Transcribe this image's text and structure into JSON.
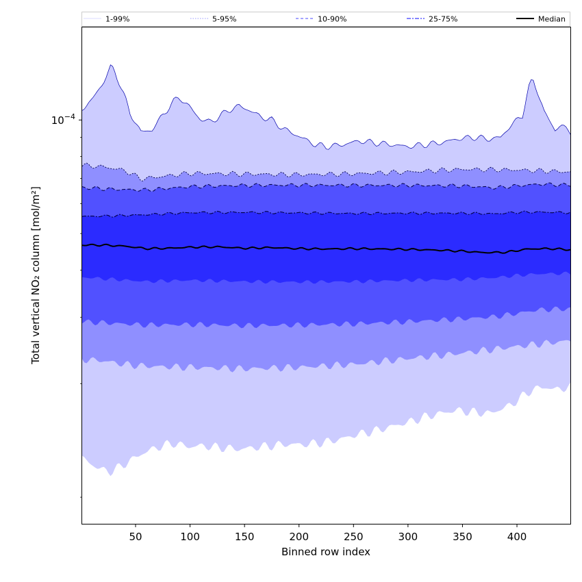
{
  "chart_data": {
    "type": "area",
    "xlabel": "Binned row index",
    "ylabel": "Total vertical NO₂ column [mol/m²]",
    "xlim": [
      1,
      449
    ],
    "y_scale": "log",
    "ylim": [
      8.5e-06,
      0.000176
    ],
    "x_ticks": [
      50,
      100,
      150,
      200,
      250,
      300,
      350,
      400
    ],
    "y_tick_label": {
      "base": "10",
      "exponent": "−4",
      "value": 0.0001
    },
    "grid": false,
    "legend": {
      "placement": "top",
      "entries": [
        {
          "label": "1-99%",
          "color": "#cfcfff",
          "style": "solid-thin"
        },
        {
          "label": "5-95%",
          "color": "#9a9aff",
          "style": "dotted"
        },
        {
          "label": "10-90%",
          "color": "#6d6dff",
          "style": "dashed"
        },
        {
          "label": "25-75%",
          "color": "#3b3bff",
          "style": "dashdot"
        },
        {
          "label": "Median",
          "color": "#000000",
          "style": "solid-thick"
        }
      ]
    },
    "bands": [
      {
        "name": "1-99%",
        "color": "#ccccff",
        "x": [
          1,
          10,
          20,
          27,
          30,
          35,
          45,
          55,
          65,
          75,
          85,
          90,
          100,
          110,
          120,
          135,
          145,
          155,
          165,
          175,
          185,
          195,
          205,
          215,
          225,
          240,
          255,
          270,
          285,
          300,
          315,
          330,
          345,
          360,
          375,
          385,
          395,
          405,
          412,
          415,
          418,
          425,
          435,
          440,
          449
        ],
        "upper": [
          0.000107,
          0.000113,
          0.000125,
          0.000138,
          0.000136,
          0.000126,
          0.000104,
          9.3e-05,
          9.4e-05,
          0.000103,
          0.000112,
          0.000115,
          0.000108,
          0.0001,
          9.9e-05,
          0.000106,
          0.000109,
          0.000106,
          0.000102,
          0.0001,
          9.5e-05,
          9.2e-05,
          8.9e-05,
          8.6e-05,
          8.5e-05,
          8.6e-05,
          8.8e-05,
          8.7e-05,
          8.6e-05,
          8.5e-05,
          8.6e-05,
          8.7e-05,
          8.9e-05,
          9e-05,
          8.9e-05,
          9e-05,
          9.7e-05,
          0.000103,
          0.000125,
          0.000127,
          0.000121,
          0.000105,
          9.4e-05,
          9.7e-05,
          9.3e-05
        ],
        "lower": [
          1.27e-05,
          1.22e-05,
          1.18e-05,
          1.17e-05,
          1.18e-05,
          1.2e-05,
          1.25e-05,
          1.3e-05,
          1.34e-05,
          1.37e-05,
          1.39e-05,
          1.38e-05,
          1.36e-05,
          1.37e-05,
          1.36e-05,
          1.35e-05,
          1.34e-05,
          1.35e-05,
          1.36e-05,
          1.37e-05,
          1.38e-05,
          1.38e-05,
          1.38e-05,
          1.39e-05,
          1.4e-05,
          1.43e-05,
          1.47e-05,
          1.5e-05,
          1.54e-05,
          1.58e-05,
          1.63e-05,
          1.67e-05,
          1.7e-05,
          1.68e-05,
          1.67e-05,
          1.71e-05,
          1.76e-05,
          1.85e-05,
          1.91e-05,
          1.93e-05,
          1.94e-05,
          1.96e-05,
          1.93e-05,
          1.94e-05,
          1.96e-05
        ]
      },
      {
        "name": "5-95%",
        "color": "#8f8fff",
        "x": [
          1,
          20,
          40,
          55,
          70,
          100,
          150,
          200,
          250,
          300,
          350,
          400,
          449
        ],
        "upper": [
          7.58e-05,
          7.52e-05,
          7.35e-05,
          6.98e-05,
          7.06e-05,
          7.22e-05,
          7.19e-05,
          7.16e-05,
          7.2e-05,
          7.28e-05,
          7.4e-05,
          7.37e-05,
          7.28e-05
        ],
        "lower": [
          2.32e-05,
          2.3e-05,
          2.25e-05,
          2.23e-05,
          2.22e-05,
          2.21e-05,
          2.19e-05,
          2.21e-05,
          2.25e-05,
          2.33e-05,
          2.41e-05,
          2.51e-05,
          2.6e-05
        ]
      },
      {
        "name": "10-90%",
        "color": "#5151ff",
        "x": [
          1,
          30,
          60,
          100,
          150,
          200,
          250,
          300,
          350,
          380,
          400,
          420,
          449
        ],
        "upper": [
          6.62e-05,
          6.55e-05,
          6.52e-05,
          6.66e-05,
          6.71e-05,
          6.72e-05,
          6.71e-05,
          6.71e-05,
          6.69e-05,
          6.61e-05,
          6.69e-05,
          6.76e-05,
          6.72e-05
        ],
        "lower": [
          2.92e-05,
          2.89e-05,
          2.86e-05,
          2.87e-05,
          2.85e-05,
          2.86e-05,
          2.88e-05,
          2.92e-05,
          2.97e-05,
          3.01e-05,
          3.07e-05,
          3.14e-05,
          3.16e-05
        ]
      },
      {
        "name": "25-75%",
        "color": "#2b2bff",
        "x": [
          1,
          30,
          60,
          100,
          150,
          200,
          250,
          300,
          350,
          380,
          400,
          420,
          449
        ],
        "upper": [
          5.55e-05,
          5.57e-05,
          5.61e-05,
          5.68e-05,
          5.69e-05,
          5.67e-05,
          5.65e-05,
          5.66e-05,
          5.66e-05,
          5.64e-05,
          5.69e-05,
          5.7e-05,
          5.68e-05
        ],
        "lower": [
          3.83e-05,
          3.78e-05,
          3.73e-05,
          3.76e-05,
          3.73e-05,
          3.72e-05,
          3.73e-05,
          3.76e-05,
          3.78e-05,
          3.82e-05,
          3.87e-05,
          3.91e-05,
          3.92e-05
        ]
      }
    ],
    "median": {
      "name": "Median",
      "color": "#000000",
      "x": [
        1,
        20,
        40,
        60,
        80,
        100,
        125,
        150,
        175,
        200,
        225,
        250,
        275,
        300,
        325,
        350,
        370,
        390,
        410,
        430,
        449
      ],
      "values": [
        4.66e-05,
        4.66e-05,
        4.63e-05,
        4.56e-05,
        4.57e-05,
        4.6e-05,
        4.61e-05,
        4.57e-05,
        4.59e-05,
        4.56e-05,
        4.55e-05,
        4.56e-05,
        4.55e-05,
        4.54e-05,
        4.52e-05,
        4.49e-05,
        4.45e-05,
        4.46e-05,
        4.55e-05,
        4.56e-05,
        4.53e-05
      ]
    }
  }
}
